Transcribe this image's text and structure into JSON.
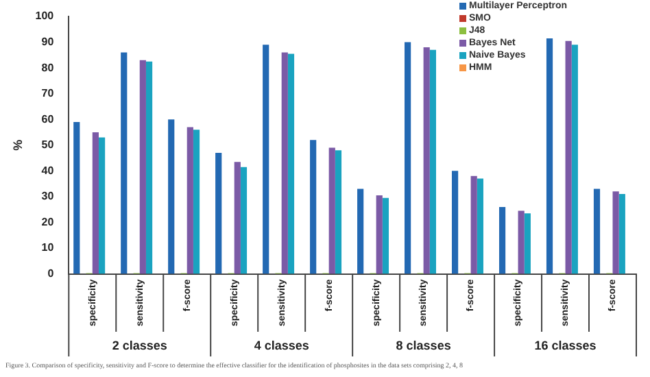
{
  "chart_data": {
    "type": "bar",
    "ylabel": "%",
    "categories": [
      "specificity",
      "sensitivity",
      "f-score",
      "specificity",
      "sensitivity",
      "f-score",
      "specificity",
      "sensitivity",
      "f-score",
      "specificity",
      "sensitivity",
      "f-score"
    ],
    "series": [
      {
        "name": "Multilayer Perceptron",
        "color": "#2369b3",
        "values": [
          59,
          86,
          60,
          47,
          89,
          52,
          33,
          90,
          40,
          26,
          91.5,
          33
        ]
      },
      {
        "name": "SMO",
        "color": "#c0392b",
        "values": [
          0,
          0,
          0,
          0,
          0,
          0,
          0,
          0,
          0,
          0,
          0,
          0
        ]
      },
      {
        "name": "J48",
        "color": "#8cbf3f",
        "values": [
          0.3,
          0.3,
          0.3,
          0.3,
          0.3,
          0.3,
          0.3,
          0.3,
          0.3,
          0.3,
          0.3,
          0.3
        ]
      },
      {
        "name": "Bayes Net",
        "color": "#7b5aa6",
        "values": [
          55,
          83,
          57,
          43.5,
          86,
          49,
          30.5,
          88,
          38,
          24.5,
          90.5,
          32
        ]
      },
      {
        "name": "Naive Bayes",
        "color": "#1aa3c0",
        "values": [
          53,
          82.5,
          56,
          41.5,
          85.5,
          48,
          29.5,
          87,
          37,
          23.5,
          89,
          31
        ]
      },
      {
        "name": "HMM",
        "color": "#f79646",
        "values": [
          0,
          0,
          0,
          0,
          0,
          0,
          0,
          0,
          0,
          0,
          0,
          0
        ]
      }
    ],
    "ylim": [
      0,
      100
    ],
    "yticks": [
      0,
      10,
      20,
      30,
      40,
      50,
      60,
      70,
      80,
      90,
      100
    ],
    "grid": false,
    "legend": "top right",
    "annotations": [
      "2 classes",
      "4 classes",
      "8 classes",
      "16 classes",
      "Figure 3. Comparison of specificity, sensitivity and F-score to determine the effective classifier for the identification of phosphosites in the data sets comprising 2, 4, 8"
    ]
  }
}
